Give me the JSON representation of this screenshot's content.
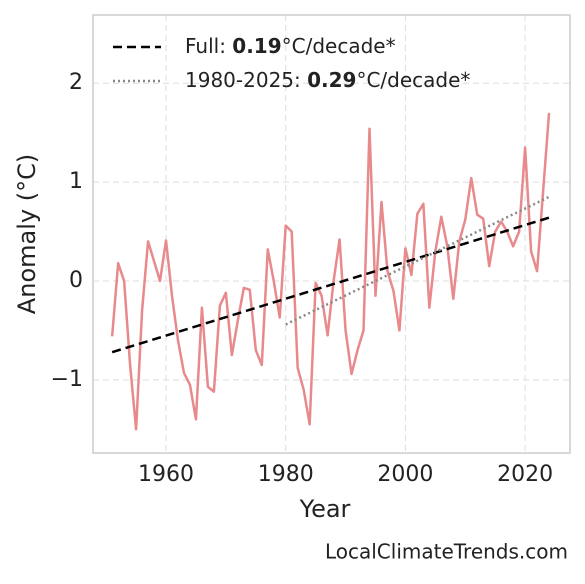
{
  "chart_data": {
    "type": "line",
    "x_label": "Year",
    "y_label": "Anomaly (°C)",
    "watermark": "LocalClimateTrends.com",
    "xlim": [
      1947.8,
      2027.5
    ],
    "xticks": [
      1960,
      1980,
      2000,
      2020
    ],
    "ylim": [
      -1.74,
      2.69
    ],
    "yticks": [
      {
        "value": -1,
        "label": "−1"
      },
      0,
      1,
      2
    ],
    "grid": true,
    "legend": "upper left",
    "x": [
      1951,
      1952,
      1953,
      1954,
      1955,
      1956,
      1957,
      1958,
      1959,
      1960,
      1961,
      1962,
      1963,
      1964,
      1965,
      1966,
      1967,
      1968,
      1969,
      1970,
      1971,
      1972,
      1973,
      1974,
      1975,
      1976,
      1977,
      1978,
      1979,
      1980,
      1981,
      1982,
      1983,
      1984,
      1985,
      1986,
      1987,
      1988,
      1989,
      1990,
      1991,
      1992,
      1993,
      1994,
      1995,
      1996,
      1997,
      1998,
      1999,
      2000,
      2001,
      2002,
      2003,
      2004,
      2005,
      2006,
      2007,
      2008,
      2009,
      2010,
      2011,
      2012,
      2013,
      2014,
      2015,
      2016,
      2017,
      2018,
      2019,
      2020,
      2021,
      2022,
      2023,
      2024
    ],
    "values": [
      -0.56,
      0.18,
      0.0,
      -0.85,
      -1.5,
      -0.3,
      0.4,
      0.2,
      0.0,
      0.41,
      -0.15,
      -0.6,
      -0.93,
      -1.05,
      -1.4,
      -0.27,
      -1.07,
      -1.12,
      -0.25,
      -0.12,
      -0.75,
      -0.4,
      -0.07,
      -0.09,
      -0.7,
      -0.85,
      0.32,
      0.0,
      -0.37,
      0.56,
      0.5,
      -0.88,
      -1.1,
      -1.45,
      -0.02,
      -0.15,
      -0.55,
      0.0,
      0.42,
      -0.5,
      -0.94,
      -0.7,
      -0.5,
      1.54,
      -0.15,
      0.8,
      0.1,
      -0.1,
      -0.5,
      0.33,
      0.06,
      0.68,
      0.78,
      -0.27,
      0.3,
      0.65,
      0.35,
      -0.18,
      0.4,
      0.62,
      1.04,
      0.67,
      0.63,
      0.15,
      0.5,
      0.6,
      0.5,
      0.35,
      0.5,
      1.35,
      0.3,
      0.1,
      0.9,
      1.7
    ],
    "color": "#e8898b",
    "series": [
      {
        "name_parts": [
          "Full: ",
          "0.19",
          "°C/decade*"
        ],
        "x": [
          1951,
          2024
        ],
        "values": [
          -0.72,
          0.64
        ],
        "color": "#000000",
        "dash": "9 5"
      },
      {
        "name_parts": [
          "1980-2025: ",
          "0.29",
          "°C/decade*"
        ],
        "x": [
          1980,
          2024
        ],
        "values": [
          -0.44,
          0.85
        ],
        "color": "#888888",
        "dash": "2 3"
      }
    ]
  }
}
